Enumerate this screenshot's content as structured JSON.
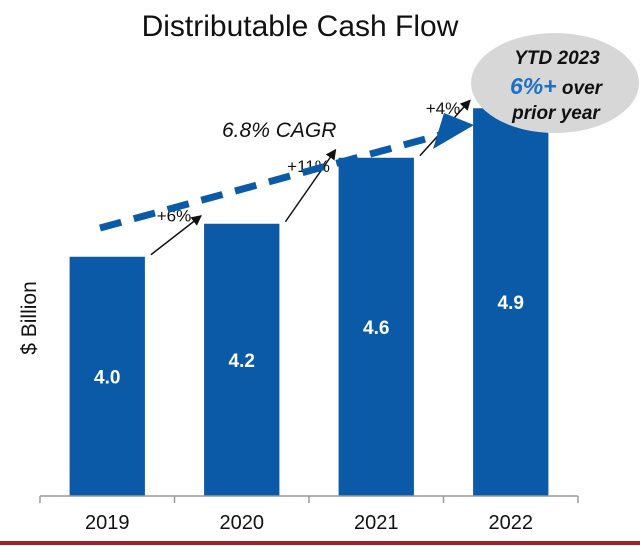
{
  "chart_data": {
    "type": "bar",
    "title": "Distributable Cash Flow",
    "ylabel": "$ Billion",
    "xlabel": "",
    "categories": [
      "2019",
      "2020",
      "2021",
      "2022"
    ],
    "values": [
      4.0,
      4.2,
      4.6,
      4.9
    ],
    "data_labels": [
      "4.0",
      "4.2",
      "4.6",
      "4.9"
    ],
    "growth_labels": [
      "+6%",
      "+11%",
      "+4%"
    ],
    "trend_label": "6.8% CAGR",
    "ylim": [
      2.55,
      5.35
    ],
    "grid": false,
    "legend": "none",
    "callout": {
      "line1": "YTD 2023",
      "line2_highlight": "6%+",
      "line2_rest": " over",
      "line3": "prior year"
    }
  },
  "colors": {
    "bar": "#0a5aa8",
    "trend_arrow": "#0a5aa8",
    "highlight": "#1f6fc4",
    "bubble": "#d7d7d7",
    "footer_rule": "#a31f2a",
    "axis": "#9a9a9a"
  }
}
